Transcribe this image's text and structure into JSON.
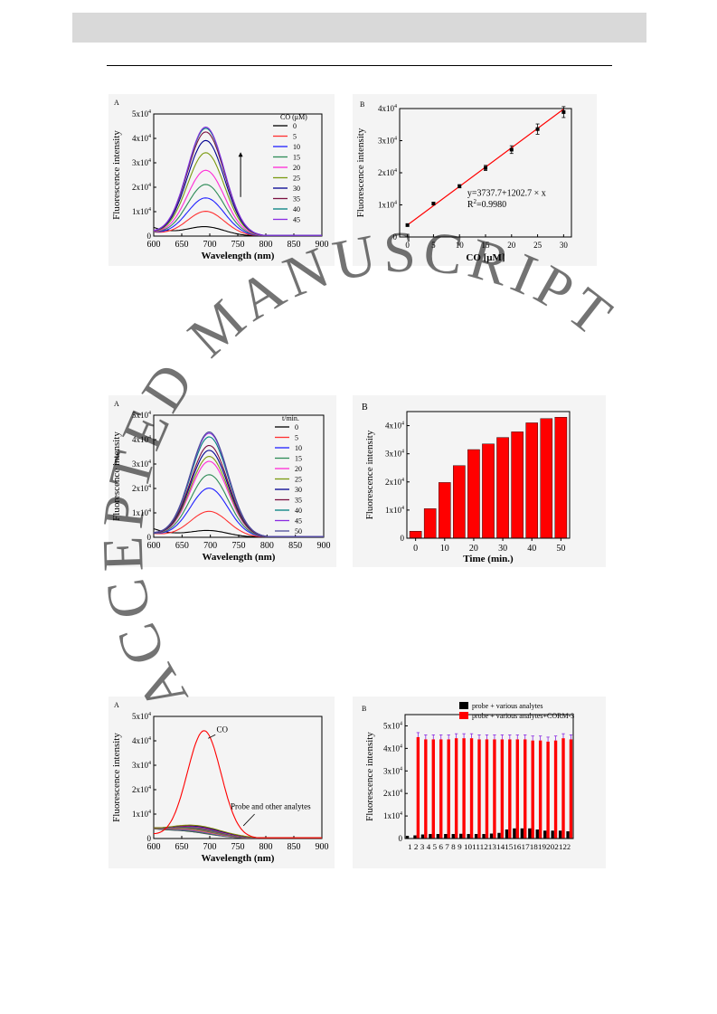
{
  "page": {
    "watermark": "ACCEPTED MANUSCRIPT"
  },
  "colors": [
    "#000000",
    "#ff3030",
    "#2020ff",
    "#2e8b57",
    "#ff2bd5",
    "#7a9a10",
    "#000090",
    "#7a1040",
    "#008080",
    "#8a2be2",
    "#4d4d99"
  ],
  "chart_data": [
    {
      "id": "r1a",
      "type": "line",
      "panel_label": "A",
      "xlabel": "Wavelength (nm)",
      "ylabel": "Fluorescence intensity",
      "xlim": [
        600,
        900
      ],
      "ylim": [
        0,
        50000
      ],
      "xticks": [
        "600",
        "650",
        "700",
        "750",
        "800",
        "850",
        "900"
      ],
      "yticks": [
        "0",
        "1x10^4",
        "2x10^4",
        "3x10^4",
        "4x10^4",
        "5x10^4"
      ],
      "legend_title": "CO (μM)",
      "series": [
        {
          "name": "0",
          "peak": 3500
        },
        {
          "name": "5",
          "peak": 10000
        },
        {
          "name": "10",
          "peak": 15500
        },
        {
          "name": "15",
          "peak": 21000
        },
        {
          "name": "20",
          "peak": 26800
        },
        {
          "name": "25",
          "peak": 34000
        },
        {
          "name": "30",
          "peak": 39000
        },
        {
          "name": "35",
          "peak": 42500
        },
        {
          "name": "40",
          "peak": 44000
        },
        {
          "name": "45",
          "peak": 44500
        }
      ],
      "peak_x": 693,
      "arrow": "up"
    },
    {
      "id": "r1b",
      "type": "scatter",
      "panel_label": "B",
      "xlabel": "CO [μM]",
      "ylabel": "Fluorescence intensity",
      "xlim": [
        -1.5,
        31.5
      ],
      "ylim": [
        0,
        40000
      ],
      "xticks": [
        "0",
        "5",
        "10",
        "15",
        "20",
        "25",
        "30"
      ],
      "yticks": [
        "0",
        "1x10^4",
        "2x10^4",
        "3x10^4",
        "4x10^4"
      ],
      "points": [
        {
          "x": 0,
          "y": 3700,
          "err": 300
        },
        {
          "x": 5,
          "y": 10400,
          "err": 400
        },
        {
          "x": 10,
          "y": 15800,
          "err": 500
        },
        {
          "x": 15,
          "y": 21500,
          "err": 800
        },
        {
          "x": 20,
          "y": 27200,
          "err": 1200
        },
        {
          "x": 25,
          "y": 33600,
          "err": 1600
        },
        {
          "x": 30,
          "y": 38900,
          "err": 1700
        }
      ],
      "fit": {
        "intercept": 3737.7,
        "slope": 1202.7
      },
      "equation": "y=3737.7+1202.7 × x",
      "r2_prefix": "R",
      "r2_sup": "2",
      "r2_value": "=0.9980"
    },
    {
      "id": "r2a",
      "type": "line",
      "panel_label": "A",
      "xlabel": "Wavelength (nm)",
      "ylabel": "Fluorescence intensity",
      "xlim": [
        600,
        900
      ],
      "ylim": [
        0,
        50000
      ],
      "xticks": [
        "600",
        "650",
        "700",
        "750",
        "800",
        "850",
        "900"
      ],
      "yticks": [
        "0",
        "1x10^4",
        "2x10^4",
        "3x10^4",
        "4x10^4",
        "5x10^4"
      ],
      "legend_title": "t/min.",
      "series": [
        {
          "name": "0",
          "peak": 2500
        },
        {
          "name": "5",
          "peak": 10500
        },
        {
          "name": "10",
          "peak": 20000
        },
        {
          "name": "15",
          "peak": 25500
        },
        {
          "name": "20",
          "peak": 31000
        },
        {
          "name": "25",
          "peak": 33000
        },
        {
          "name": "30",
          "peak": 35500
        },
        {
          "name": "35",
          "peak": 37500
        },
        {
          "name": "40",
          "peak": 41000
        },
        {
          "name": "45",
          "peak": 42500
        },
        {
          "name": "50",
          "peak": 43000
        }
      ],
      "peak_x": 698
    },
    {
      "id": "r2b",
      "type": "bar",
      "panel_label": "B",
      "xlabel": "Time (min.)",
      "ylabel": "Fluorescence intensity",
      "xlim": [
        -3,
        53
      ],
      "ylim": [
        0,
        45000
      ],
      "xticks": [
        "0",
        "10",
        "20",
        "30",
        "40",
        "50"
      ],
      "yticks": [
        "0",
        "1x10^4",
        "2x10^4",
        "3x10^4",
        "4x10^4"
      ],
      "categories": [
        0,
        5,
        10,
        15,
        20,
        25,
        30,
        35,
        40,
        45,
        50
      ],
      "values": [
        2500,
        10500,
        19800,
        25800,
        31500,
        33500,
        35800,
        37800,
        41000,
        42500,
        43000
      ],
      "bar_color": "#ff0000"
    },
    {
      "id": "r3a",
      "type": "line",
      "panel_label": "A",
      "xlabel": "Wavelength (nm)",
      "ylabel": "Fluorescence intensity",
      "xlim": [
        600,
        900
      ],
      "ylim": [
        0,
        50000
      ],
      "xticks": [
        "600",
        "650",
        "700",
        "750",
        "800",
        "850",
        "900"
      ],
      "yticks": [
        "0",
        "1x10^4",
        "2x10^4",
        "3x10^4",
        "4x10^4",
        "5x10^4"
      ],
      "annotations": [
        "CO",
        "Probe and other  analytes"
      ],
      "co_peak": 44000,
      "other_peak": 5000
    },
    {
      "id": "r3b",
      "type": "bar",
      "panel_label": "B",
      "xlabel": "",
      "ylabel": "Fluorescence intensity",
      "ylim": [
        0,
        55000
      ],
      "yticks": [
        "0",
        "1x10^4",
        "2x10^4",
        "3x10^4",
        "4x10^4",
        "5x10^4"
      ],
      "categories": [
        "1",
        "2",
        "3",
        "4",
        "5",
        "6",
        "7",
        "8",
        "9",
        "10",
        "11",
        "12",
        "13",
        "14",
        "15",
        "16",
        "17",
        "18",
        "19",
        "20",
        "21",
        "22"
      ],
      "xtick_text": "1 2 3 4 5 6 7 8 9 1011121314151617181920212",
      "xtick_tail": "2",
      "series": [
        {
          "name": "probe + various analytes",
          "color": "#000000",
          "values": [
            1200,
            1400,
            1800,
            2000,
            2000,
            2000,
            2000,
            2100,
            2000,
            2000,
            2000,
            2200,
            2500,
            4000,
            4500,
            4500,
            4500,
            4000,
            3500,
            3500,
            3500,
            3200
          ]
        },
        {
          "name": "probe + various analytes+CORM-3",
          "color": "#ff0000",
          "values": [
            null,
            45000,
            44000,
            44000,
            44000,
            44000,
            44500,
            44500,
            44500,
            44000,
            44000,
            44000,
            44000,
            44000,
            44000,
            44000,
            43500,
            43500,
            43000,
            43500,
            44500,
            44000
          ]
        }
      ]
    }
  ]
}
